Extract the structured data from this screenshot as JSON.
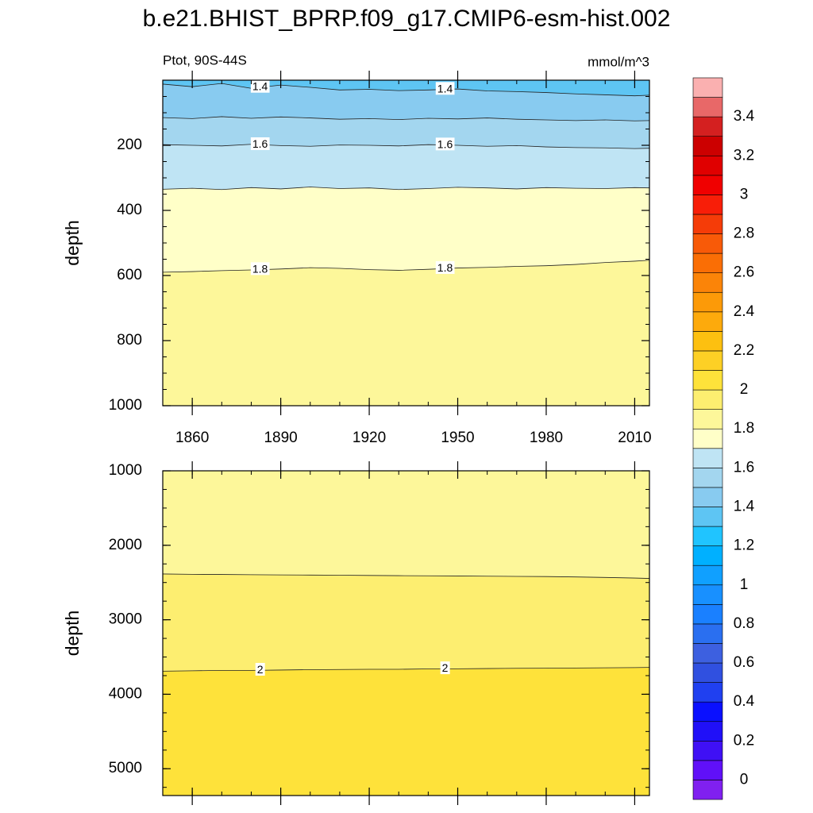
{
  "title": "b.e21.BHIST_BPRP.f09_g17.CMIP6-esm-hist.002",
  "chart_data": [
    {
      "type": "contour",
      "left_label": "Ptot, 90S-44S",
      "right_label": "mmol/m^3",
      "ylabel": "depth",
      "x": [
        1850,
        1860,
        1870,
        1880,
        1890,
        1900,
        1910,
        1920,
        1930,
        1940,
        1950,
        1960,
        1970,
        1980,
        1990,
        2000,
        2010,
        2015
      ],
      "xlim": [
        1850,
        2015
      ],
      "xticks": [
        1860,
        1890,
        1920,
        1950,
        1980,
        2010
      ],
      "show_xtick_labels": true,
      "ylim": [
        0,
        1000
      ],
      "y_inverted": true,
      "yticks": [
        200,
        400,
        600,
        800,
        1000
      ],
      "contours": [
        {
          "level": 1.4,
          "labeled": true,
          "depth": [
            12,
            20,
            10,
            25,
            15,
            22,
            30,
            28,
            32,
            30,
            27,
            33,
            35,
            38,
            42,
            45,
            48,
            46
          ]
        },
        {
          "level": 1.5,
          "labeled": false,
          "depth": [
            115,
            118,
            112,
            117,
            113,
            116,
            120,
            118,
            121,
            117,
            119,
            116,
            120,
            122,
            124,
            122,
            125,
            124
          ]
        },
        {
          "level": 1.6,
          "labeled": true,
          "depth": [
            198,
            200,
            202,
            197,
            201,
            203,
            199,
            200,
            202,
            198,
            200,
            203,
            201,
            205,
            207,
            208,
            210,
            209
          ]
        },
        {
          "level": 1.7,
          "labeled": false,
          "depth": [
            335,
            332,
            336,
            330,
            334,
            328,
            333,
            331,
            336,
            333,
            329,
            331,
            334,
            330,
            332,
            333,
            330,
            331
          ]
        },
        {
          "level": 1.8,
          "labeled": true,
          "depth": [
            590,
            588,
            585,
            583,
            580,
            576,
            578,
            582,
            584,
            581,
            577,
            575,
            572,
            570,
            566,
            560,
            556,
            553
          ]
        }
      ]
    },
    {
      "type": "contour",
      "ylabel": "depth",
      "x": [
        1850,
        1860,
        1870,
        1880,
        1890,
        1900,
        1910,
        1920,
        1930,
        1940,
        1950,
        1960,
        1970,
        1980,
        1990,
        2000,
        2010,
        2015
      ],
      "xlim": [
        1850,
        2015
      ],
      "xticks": [
        1860,
        1890,
        1920,
        1950,
        1980,
        2010
      ],
      "show_xtick_labels": false,
      "ylim": [
        1000,
        5360
      ],
      "y_inverted": true,
      "yticks": [
        1000,
        2000,
        3000,
        4000,
        5000
      ],
      "contours": [
        {
          "level": 1.9,
          "labeled": false,
          "depth": [
            2385,
            2390,
            2392,
            2395,
            2398,
            2400,
            2402,
            2405,
            2408,
            2410,
            2412,
            2415,
            2418,
            2420,
            2425,
            2432,
            2440,
            2445
          ]
        },
        {
          "level": 2,
          "labeled": true,
          "depth": [
            3690,
            3685,
            3680,
            3680,
            3675,
            3670,
            3668,
            3665,
            3665,
            3660,
            3658,
            3655,
            3652,
            3650,
            3648,
            3645,
            3642,
            3640
          ]
        }
      ]
    }
  ],
  "colorbar": {
    "levels": [
      0,
      0.1,
      0.2,
      0.3,
      0.4,
      0.5,
      0.6,
      0.7,
      0.8,
      0.9,
      1,
      1.1,
      1.2,
      1.3,
      1.4,
      1.5,
      1.6,
      1.7,
      1.8,
      1.9,
      2,
      2.1,
      2.2,
      2.3,
      2.4,
      2.5,
      2.6,
      2.7,
      2.8,
      2.9,
      3,
      3.1,
      3.2,
      3.3,
      3.4,
      3.5
    ],
    "colors": [
      "#8020f0",
      "#6010f8",
      "#3f10f5",
      "#2010f8",
      "#0a10ff",
      "#2040f0",
      "#3050e0",
      "#3d60e0",
      "#2a6ff0",
      "#1a80ff",
      "#1890ff",
      "#10a0ff",
      "#00b0ff",
      "#20c4ff",
      "#5ec5f3",
      "#88cbf0",
      "#a3d6ef",
      "#bfe4f4",
      "#ffffc8",
      "#fdf79a",
      "#fdee70",
      "#fee23a",
      "#fdd025",
      "#fdc010",
      "#fdaa0c",
      "#fc9a08",
      "#fb8408",
      "#fa6e05",
      "#f85a08",
      "#f53c08",
      "#f81e08",
      "#f00000",
      "#e00000",
      "#cc0000",
      "#d42020",
      "#e86868",
      "#fab0b0"
    ],
    "ticks": [
      0,
      0.2,
      0.4,
      0.6,
      0.8,
      1,
      1.2,
      1.4,
      1.6,
      1.8,
      2,
      2.2,
      2.4,
      2.6,
      2.8,
      3,
      3.2,
      3.4
    ]
  }
}
